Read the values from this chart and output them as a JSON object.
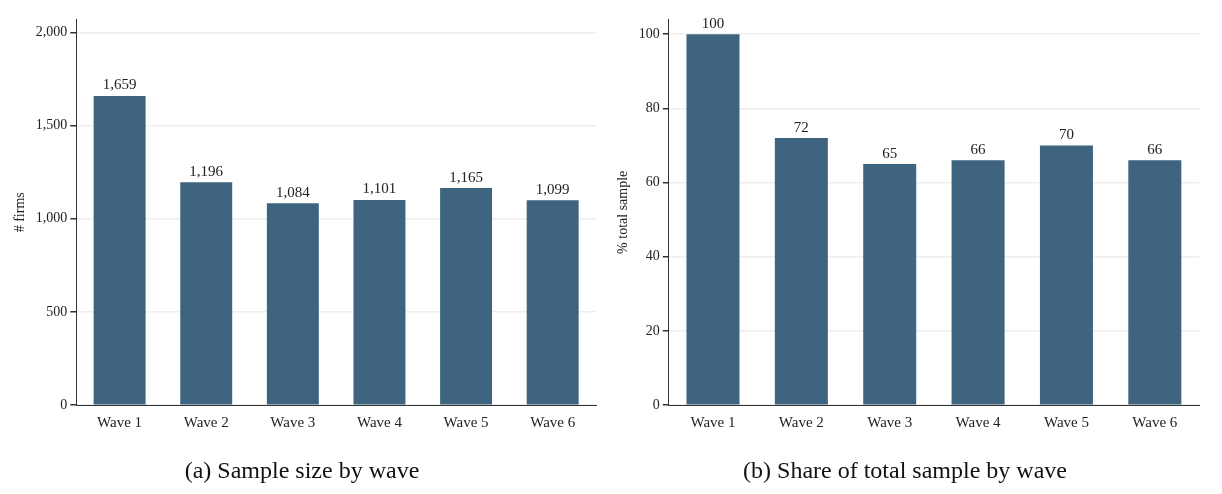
{
  "chart_data": [
    {
      "type": "bar",
      "title": "(a) Sample size by wave",
      "ylabel": "# firms",
      "categories": [
        "Wave 1",
        "Wave 2",
        "Wave 3",
        "Wave 4",
        "Wave 5",
        "Wave 6"
      ],
      "values": [
        1659,
        1196,
        1084,
        1101,
        1165,
        1099
      ],
      "value_labels": [
        "1,659",
        "1,196",
        "1,084",
        "1,101",
        "1,165",
        "1,099"
      ],
      "color": "#3e6480",
      "ylim": [
        0,
        2070
      ],
      "yticks": [
        {
          "value": 0,
          "label": "0"
        },
        {
          "value": 500,
          "label": "500"
        },
        {
          "value": 1000,
          "label": "1,000"
        },
        {
          "value": 1500,
          "label": "1,500"
        },
        {
          "value": 2000,
          "label": "2,000"
        }
      ],
      "grid": "y",
      "legend": false
    },
    {
      "type": "bar",
      "title": "(b) Share of total sample by wave",
      "ylabel": "% total sample",
      "categories": [
        "Wave 1",
        "Wave 2",
        "Wave 3",
        "Wave 4",
        "Wave 5",
        "Wave 6"
      ],
      "values": [
        100,
        72,
        65,
        66,
        70,
        66
      ],
      "data_labels": true,
      "color": "#3e6480",
      "ylim": [
        0,
        104
      ],
      "yticks": [
        0,
        20,
        40,
        60,
        80,
        100
      ],
      "grid": "y",
      "legend": false
    }
  ]
}
